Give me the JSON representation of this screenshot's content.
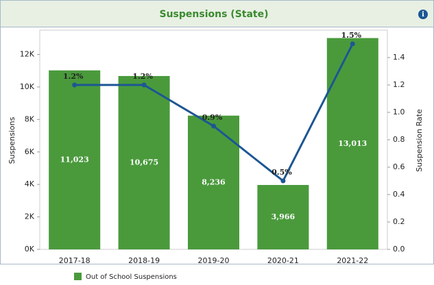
{
  "chart_data": {
    "type": "bar",
    "title": "Suspensions (State)",
    "categories": [
      "2017-18",
      "2018-19",
      "2019-20",
      "2020-21",
      "2021-22"
    ],
    "ylabel": "Suspensions",
    "y2label": "Suspension Rate",
    "ylim": [
      0,
      13500
    ],
    "yticks": [
      {
        "value": 0,
        "label": "0K"
      },
      {
        "value": 2000,
        "label": "2K"
      },
      {
        "value": 4000,
        "label": "4K"
      },
      {
        "value": 6000,
        "label": "6K"
      },
      {
        "value": 8000,
        "label": "8K"
      },
      {
        "value": 10000,
        "label": "10K"
      },
      {
        "value": 12000,
        "label": "12K"
      }
    ],
    "y2lim": [
      0,
      1.6
    ],
    "y2ticks": [
      {
        "value": 0,
        "label": "0.0"
      },
      0.2,
      0.4,
      0.6,
      0.8,
      {
        "value": 1,
        "label": "1.0"
      },
      1.2,
      1.4
    ],
    "series": [
      {
        "name": "Out of School Suspensions",
        "type": "bar",
        "color": "#4a9a3c",
        "values": [
          11023,
          10675,
          8236,
          3966,
          13013
        ],
        "value_labels": [
          "11,023",
          "10,675",
          "8,236",
          "3,966",
          "13,013"
        ]
      },
      {
        "type": "line",
        "axis": "y2",
        "color": "#1c5694",
        "values": [
          1.2,
          1.2,
          0.9,
          0.5,
          1.5
        ],
        "value_labels": [
          "1.2%",
          "1.2%",
          "0.9%",
          "0.5%",
          "1.5%"
        ]
      }
    ],
    "legend": "bottom-left"
  }
}
